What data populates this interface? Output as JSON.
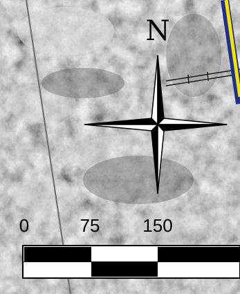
{
  "map": {
    "north_label": "N",
    "scale_labels": [
      "0",
      "75",
      "150"
    ],
    "colors": {
      "road_outer": "#1e2f8c",
      "road_inner": "#f2e400",
      "scale_dark": "#000000",
      "scale_light": "#ffffff"
    }
  }
}
